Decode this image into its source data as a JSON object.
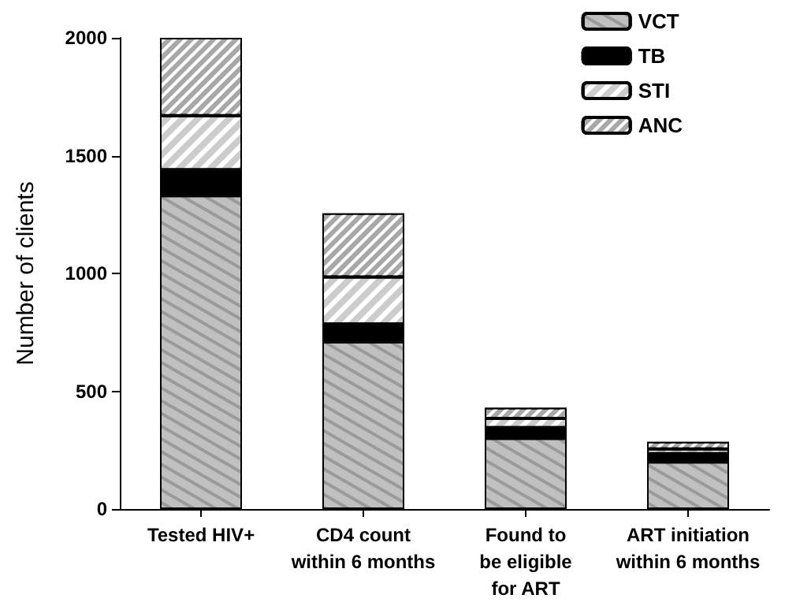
{
  "chart_data": {
    "type": "bar",
    "stacked": true,
    "ylabel": "Number of clients",
    "categories": [
      "Tested HIV+",
      "CD4 count\nwithin 6 months",
      "Found to\nbe eligible\nfor ART",
      "ART initiation\nwithin 6 months"
    ],
    "series": [
      {
        "name": "VCT",
        "color": "#c0c0c0",
        "values": [
          1330,
          710,
          300,
          200
        ]
      },
      {
        "name": "TB",
        "color": "#000000",
        "values": [
          110,
          75,
          45,
          35
        ]
      },
      {
        "name": "STI",
        "color": "#ffffff",
        "values": [
          230,
          200,
          40,
          20
        ]
      },
      {
        "name": "ANC",
        "color": "#a8a8a8",
        "values": [
          330,
          270,
          45,
          30
        ]
      }
    ],
    "ylim": [
      0,
      2000
    ],
    "yticks": [
      0,
      500,
      1000,
      1500,
      2000
    ],
    "grid": false,
    "legend": "top right"
  }
}
